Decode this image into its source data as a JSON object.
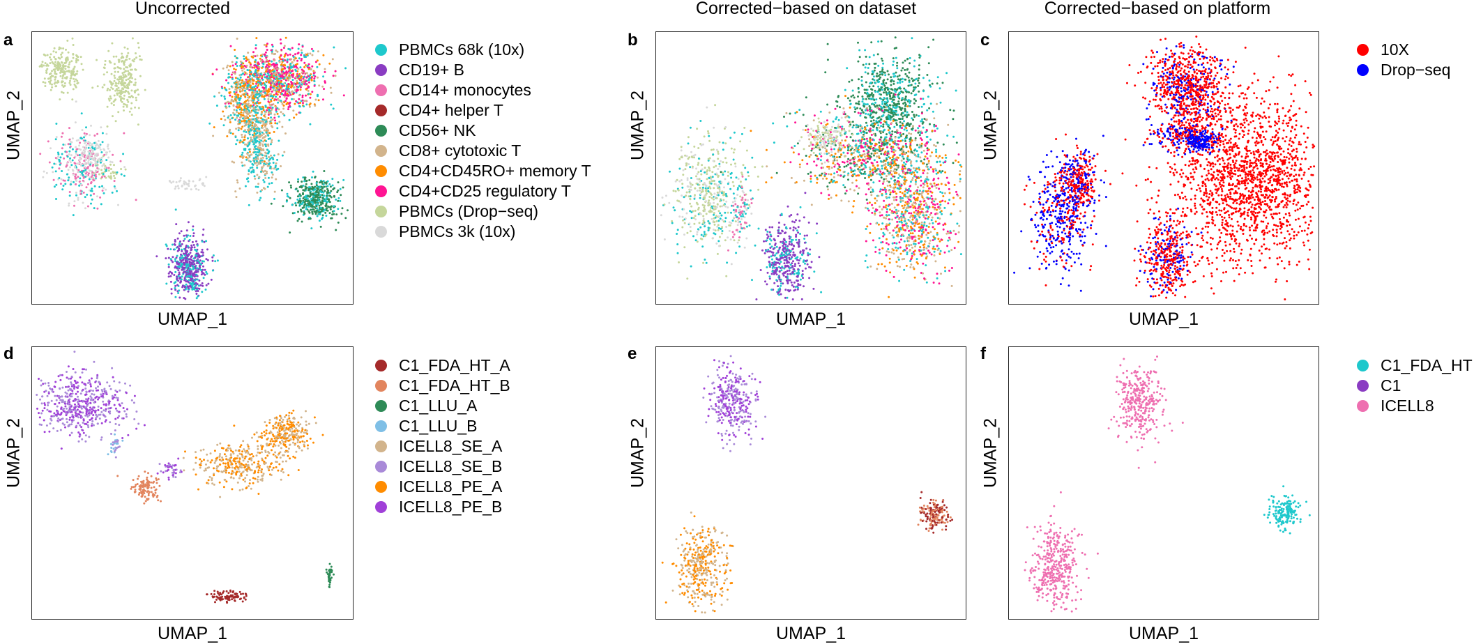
{
  "column_titles": {
    "uncorrected": "Uncorrected",
    "dataset": "Corrected−based on dataset",
    "platform": "Corrected−based on platform"
  },
  "axis_labels": {
    "x": "UMAP_1",
    "y": "UMAP_2"
  },
  "panels": {
    "a": {
      "letter": "a",
      "xlabel": "UMAP_1",
      "ylabel": "UMAP_2"
    },
    "b": {
      "letter": "b",
      "xlabel": "UMAP_1",
      "ylabel": "UMAP_2"
    },
    "c": {
      "letter": "c",
      "xlabel": "UMAP_1",
      "ylabel": "UMAP_2"
    },
    "d": {
      "letter": "d",
      "xlabel": "UMAP_1",
      "ylabel": "UMAP_2"
    },
    "e": {
      "letter": "e",
      "xlabel": "UMAP_1",
      "ylabel": "UMAP_2"
    },
    "f": {
      "letter": "f",
      "xlabel": "UMAP_1",
      "ylabel": "UMAP_2"
    }
  },
  "legends": {
    "pbmc_dataset": [
      {
        "label": "PBMCs 68k (10x)",
        "color": "#1ec8cc"
      },
      {
        "label": "CD19+ B",
        "color": "#8a3cc2"
      },
      {
        "label": "CD14+ monocytes",
        "color": "#ee6fb0"
      },
      {
        "label": "CD4+ helper T",
        "color": "#a52a2a"
      },
      {
        "label": "CD56+ NK",
        "color": "#2e8b57"
      },
      {
        "label": "CD8+ cytotoxic T",
        "color": "#d2b48c"
      },
      {
        "label": "CD4+CD45RO+ memory T",
        "color": "#ff8c00"
      },
      {
        "label": "CD4+CD25 regulatory T",
        "color": "#ff1493"
      },
      {
        "label": "PBMCs (Drop−seq)",
        "color": "#c5d69b"
      },
      {
        "label": "PBMCs 3k (10x)",
        "color": "#d9d9d9"
      }
    ],
    "pbmc_platform": [
      {
        "label": "10X",
        "color": "#ff0000"
      },
      {
        "label": "Drop−seq",
        "color": "#0000ff"
      }
    ],
    "cellline_dataset": [
      {
        "label": "C1_FDA_HT_A",
        "color": "#a52a2a"
      },
      {
        "label": "C1_FDA_HT_B",
        "color": "#e2855e"
      },
      {
        "label": "C1_LLU_A",
        "color": "#2e8b57"
      },
      {
        "label": "C1_LLU_B",
        "color": "#7fbfe6"
      },
      {
        "label": "ICELL8_SE_A",
        "color": "#d2b48c"
      },
      {
        "label": "ICELL8_SE_B",
        "color": "#a98ad8"
      },
      {
        "label": "ICELL8_PE_A",
        "color": "#ff8c00"
      },
      {
        "label": "ICELL8_PE_B",
        "color": "#a040d8"
      }
    ],
    "cellline_platform": [
      {
        "label": "C1_FDA_HT",
        "color": "#1ec8cc"
      },
      {
        "label": "C1",
        "color": "#8a3cc2"
      },
      {
        "label": "ICELL8",
        "color": "#ee6fb0"
      }
    ]
  },
  "chart_data": [
    {
      "panel": "a",
      "type": "scatter",
      "title": "Uncorrected",
      "xlabel": "UMAP_1",
      "ylabel": "UMAP_2",
      "xlim": [
        0,
        100
      ],
      "ylim": [
        0,
        100
      ],
      "clusters": [
        {
          "x": 8,
          "y": 87,
          "sx": 3,
          "sy": 4,
          "n": 220,
          "colors": [
            "#c5d69b"
          ]
        },
        {
          "x": 28,
          "y": 83,
          "sx": 3,
          "sy": 6,
          "n": 240,
          "colors": [
            "#c5d69b"
          ]
        },
        {
          "x": 23,
          "y": 49,
          "sx": 2,
          "sy": 2,
          "n": 40,
          "colors": [
            "#c5d69b"
          ]
        },
        {
          "x": 15,
          "y": 50,
          "sx": 5,
          "sy": 7,
          "n": 360,
          "colors": [
            "#1ec8cc",
            "#ee6fb0",
            "#d9d9d9"
          ]
        },
        {
          "x": 18,
          "y": 55,
          "sx": 3,
          "sy": 3,
          "n": 80,
          "colors": [
            "#d9d9d9"
          ]
        },
        {
          "x": 48,
          "y": 44,
          "sx": 3,
          "sy": 1.5,
          "n": 40,
          "colors": [
            "#d9d9d9"
          ]
        },
        {
          "x": 78,
          "y": 84,
          "sx": 7,
          "sy": 6,
          "n": 900,
          "colors": [
            "#ff1493",
            "#ff1493",
            "#ff8c00",
            "#d2b48c",
            "#1ec8cc"
          ]
        },
        {
          "x": 68,
          "y": 74,
          "sx": 4,
          "sy": 9,
          "n": 600,
          "colors": [
            "#d2b48c",
            "#1ec8cc",
            "#ff8c00"
          ]
        },
        {
          "x": 72,
          "y": 55,
          "sx": 3,
          "sy": 8,
          "n": 300,
          "colors": [
            "#d2b48c",
            "#1ec8cc"
          ]
        },
        {
          "x": 89,
          "y": 38,
          "sx": 4,
          "sy": 4,
          "n": 420,
          "colors": [
            "#2e8b57",
            "#2e8b57",
            "#1ec8cc"
          ]
        },
        {
          "x": 49,
          "y": 12,
          "sx": 3,
          "sy": 6,
          "n": 520,
          "colors": [
            "#8a3cc2",
            "#8a3cc2",
            "#1ec8cc"
          ]
        }
      ]
    },
    {
      "panel": "b",
      "type": "scatter",
      "title": "Corrected−based on dataset",
      "xlabel": "UMAP_1",
      "ylabel": "UMAP_2",
      "xlim": [
        0,
        100
      ],
      "ylim": [
        0,
        100
      ],
      "clusters": [
        {
          "x": 76,
          "y": 75,
          "sx": 7,
          "sy": 9,
          "n": 700,
          "colors": [
            "#2e8b57",
            "#2e8b57",
            "#1ec8cc"
          ]
        },
        {
          "x": 70,
          "y": 55,
          "sx": 13,
          "sy": 8,
          "n": 900,
          "colors": [
            "#ff1493",
            "#1ec8cc",
            "#d2b48c",
            "#2e8b57",
            "#ff8c00"
          ]
        },
        {
          "x": 84,
          "y": 32,
          "sx": 7,
          "sy": 11,
          "n": 800,
          "colors": [
            "#ff1493",
            "#ff8c00",
            "#d2b48c",
            "#1ec8cc"
          ]
        },
        {
          "x": 55,
          "y": 62,
          "sx": 4,
          "sy": 3,
          "n": 120,
          "colors": [
            "#c5d69b",
            "#d9d9d9"
          ]
        },
        {
          "x": 16,
          "y": 40,
          "sx": 6,
          "sy": 11,
          "n": 500,
          "colors": [
            "#c5d69b",
            "#c5d69b",
            "#1ec8cc",
            "#d9d9d9"
          ]
        },
        {
          "x": 27,
          "y": 33,
          "sx": 2,
          "sy": 6,
          "n": 100,
          "colors": [
            "#1ec8cc",
            "#d9d9d9",
            "#ee6fb0"
          ]
        },
        {
          "x": 42,
          "y": 15,
          "sx": 4,
          "sy": 7,
          "n": 420,
          "colors": [
            "#8a3cc2",
            "#8a3cc2",
            "#1ec8cc"
          ]
        }
      ]
    },
    {
      "panel": "c",
      "type": "scatter",
      "title": "Corrected−based on platform",
      "xlabel": "UMAP_1",
      "ylabel": "UMAP_2",
      "xlim": [
        0,
        100
      ],
      "ylim": [
        0,
        100
      ],
      "clusters": [
        {
          "x": 58,
          "y": 80,
          "sx": 6,
          "sy": 9,
          "n": 800,
          "colors": [
            "#ff0000",
            "#ff0000",
            "#ff0000",
            "#0000ff"
          ]
        },
        {
          "x": 78,
          "y": 45,
          "sx": 13,
          "sy": 16,
          "n": 1700,
          "colors": [
            "#ff0000"
          ]
        },
        {
          "x": 58,
          "y": 62,
          "sx": 6,
          "sy": 3,
          "n": 200,
          "colors": [
            "#ff0000",
            "#0000ff"
          ]
        },
        {
          "x": 62,
          "y": 60,
          "sx": 2,
          "sy": 2,
          "n": 120,
          "colors": [
            "#0000ff"
          ]
        },
        {
          "x": 16,
          "y": 32,
          "sx": 5,
          "sy": 11,
          "n": 450,
          "colors": [
            "#0000ff",
            "#0000ff",
            "#ff0000"
          ]
        },
        {
          "x": 22,
          "y": 45,
          "sx": 3,
          "sy": 6,
          "n": 300,
          "colors": [
            "#ff0000",
            "#ff0000",
            "#0000ff"
          ]
        },
        {
          "x": 51,
          "y": 16,
          "sx": 4,
          "sy": 8,
          "n": 420,
          "colors": [
            "#ff0000",
            "#ff0000",
            "#ff0000",
            "#0000ff"
          ]
        }
      ]
    },
    {
      "panel": "d",
      "type": "scatter",
      "title": "",
      "xlabel": "UMAP_1",
      "ylabel": "UMAP_2",
      "xlim": [
        0,
        100
      ],
      "ylim": [
        0,
        100
      ],
      "clusters": [
        {
          "x": 14,
          "y": 80,
          "sx": 8,
          "sy": 6,
          "n": 520,
          "colors": [
            "#a98ad8",
            "#a040d8"
          ]
        },
        {
          "x": 25,
          "y": 64,
          "sx": 1,
          "sy": 2,
          "n": 30,
          "colors": [
            "#7fbfe6",
            "#a98ad8"
          ]
        },
        {
          "x": 35,
          "y": 48,
          "sx": 2.5,
          "sy": 2.5,
          "n": 110,
          "colors": [
            "#e2855e"
          ]
        },
        {
          "x": 65,
          "y": 57,
          "sx": 7,
          "sy": 4,
          "n": 320,
          "colors": [
            "#ff8c00",
            "#d2b48c"
          ]
        },
        {
          "x": 80,
          "y": 68,
          "sx": 4,
          "sy": 4,
          "n": 260,
          "colors": [
            "#ff8c00",
            "#d2b48c"
          ]
        },
        {
          "x": 43,
          "y": 55,
          "sx": 2,
          "sy": 1.5,
          "n": 40,
          "colors": [
            "#a040d8",
            "#a98ad8"
          ]
        },
        {
          "x": 61,
          "y": 7,
          "sx": 3,
          "sy": 1,
          "n": 90,
          "colors": [
            "#a52a2a"
          ]
        },
        {
          "x": 94,
          "y": 15,
          "sx": 0.4,
          "sy": 2,
          "n": 40,
          "colors": [
            "#2e8b57"
          ]
        }
      ]
    },
    {
      "panel": "e",
      "type": "scatter",
      "title": "",
      "xlabel": "UMAP_1",
      "ylabel": "UMAP_2",
      "xlim": [
        0,
        100
      ],
      "ylim": [
        0,
        100
      ],
      "clusters": [
        {
          "x": 24,
          "y": 81,
          "sx": 4,
          "sy": 7,
          "n": 330,
          "colors": [
            "#a98ad8",
            "#a040d8"
          ]
        },
        {
          "x": 14,
          "y": 18,
          "sx": 4,
          "sy": 8,
          "n": 380,
          "colors": [
            "#ff8c00",
            "#d2b48c"
          ]
        },
        {
          "x": 91,
          "y": 38,
          "sx": 2.5,
          "sy": 3,
          "n": 160,
          "colors": [
            "#a52a2a",
            "#e2855e"
          ]
        }
      ]
    },
    {
      "panel": "f",
      "type": "scatter",
      "title": "",
      "xlabel": "UMAP_1",
      "ylabel": "UMAP_2",
      "xlim": [
        0,
        100
      ],
      "ylim": [
        0,
        100
      ],
      "clusters": [
        {
          "x": 42,
          "y": 81,
          "sx": 4,
          "sy": 7,
          "n": 330,
          "colors": [
            "#ee6fb0"
          ]
        },
        {
          "x": 14,
          "y": 18,
          "sx": 4,
          "sy": 8,
          "n": 380,
          "colors": [
            "#ee6fb0"
          ]
        },
        {
          "x": 90,
          "y": 39,
          "sx": 2.5,
          "sy": 3,
          "n": 160,
          "colors": [
            "#1ec8cc"
          ]
        }
      ]
    }
  ]
}
